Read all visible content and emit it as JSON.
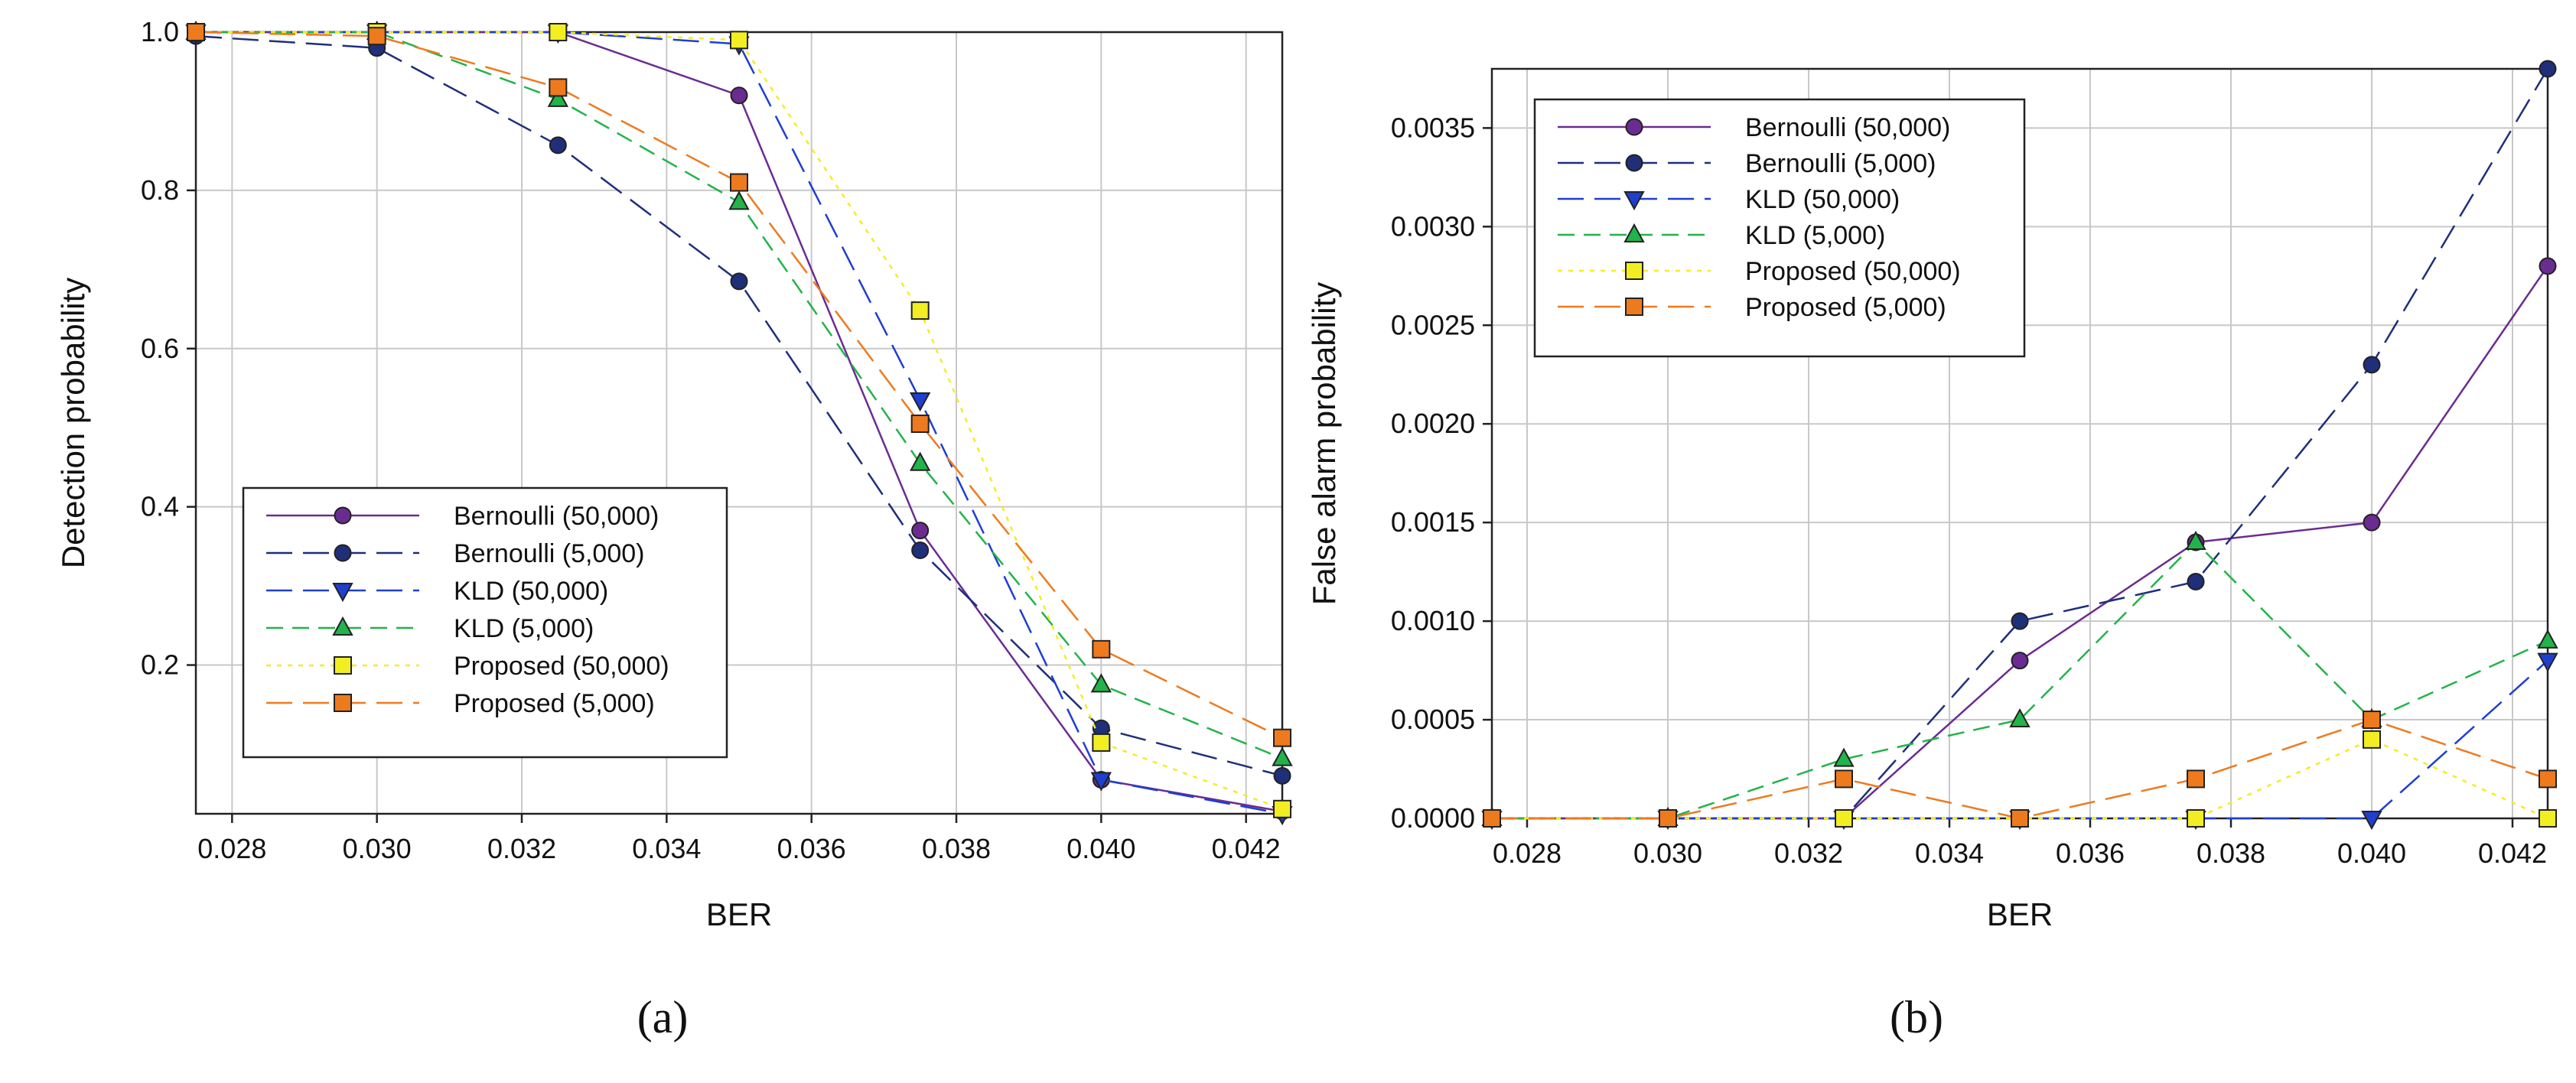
{
  "chart_data": [
    {
      "id": "a",
      "type": "line",
      "caption": "(a)",
      "xlabel": "BER",
      "ylabel": "Detection probability",
      "xlim": [
        0.0275,
        0.0425
      ],
      "ylim": [
        0.012,
        1.0
      ],
      "xticks": [
        0.028,
        0.03,
        0.032,
        0.034,
        0.036,
        0.038,
        0.04,
        0.042
      ],
      "xtick_labels": [
        "0.028",
        "0.030",
        "0.032",
        "0.034",
        "0.036",
        "0.038",
        "0.040",
        "0.042"
      ],
      "yticks": [
        0.2,
        0.4,
        0.6,
        0.8,
        1.0
      ],
      "ytick_labels": [
        "0.2",
        "0.4",
        "0.6",
        "0.8",
        "1.0"
      ],
      "grid": true,
      "legend_position": "lower-left",
      "x": [
        0.0275,
        0.03,
        0.0325,
        0.035,
        0.0375,
        0.04,
        0.0425
      ],
      "series": [
        {
          "name": "Bernoulli (50,000)",
          "color": "#6b2c91",
          "marker": "circle",
          "dash": "solid",
          "values": [
            1.0,
            1.0,
            1.0,
            0.92,
            0.37,
            0.055,
            0.015
          ]
        },
        {
          "name": "Bernoulli (5,000)",
          "color": "#1f2f7a",
          "marker": "circle",
          "dash": "long",
          "values": [
            0.995,
            0.98,
            0.857,
            0.685,
            0.345,
            0.12,
            0.06
          ]
        },
        {
          "name": "KLD (50,000)",
          "color": "#1f3fd0",
          "marker": "triangle-down",
          "dash": "long",
          "values": [
            1.0,
            1.0,
            1.0,
            0.985,
            0.535,
            0.055,
            0.012
          ]
        },
        {
          "name": "KLD (5,000)",
          "color": "#22b34a",
          "marker": "triangle-up",
          "dash": "medium",
          "values": [
            1.0,
            1.0,
            0.915,
            0.785,
            0.455,
            0.175,
            0.082
          ]
        },
        {
          "name": "Proposed (50,000)",
          "color": "#f2ee22",
          "marker": "square",
          "dash": "dotted",
          "values": [
            1.0,
            1.0,
            1.0,
            0.99,
            0.648,
            0.102,
            0.018
          ]
        },
        {
          "name": "Proposed (5,000)",
          "color": "#ee7a1e",
          "marker": "square",
          "dash": "long",
          "values": [
            1.0,
            0.995,
            0.93,
            0.81,
            0.505,
            0.22,
            0.108
          ]
        }
      ]
    },
    {
      "id": "b",
      "type": "line",
      "caption": "(b)",
      "xlabel": "BER",
      "ylabel": "False alarm probability",
      "xlim": [
        0.0275,
        0.0425
      ],
      "ylim": [
        0.0,
        0.0038
      ],
      "xticks": [
        0.028,
        0.03,
        0.032,
        0.034,
        0.036,
        0.038,
        0.04,
        0.042
      ],
      "xtick_labels": [
        "0.028",
        "0.030",
        "0.032",
        "0.034",
        "0.036",
        "0.038",
        "0.040",
        "0.042"
      ],
      "yticks": [
        0.0,
        0.0005,
        0.001,
        0.0015,
        0.002,
        0.0025,
        0.003,
        0.0035
      ],
      "ytick_labels": [
        "0.0000",
        "0.0005",
        "0.0010",
        "0.0015",
        "0.0020",
        "0.0025",
        "0.0030",
        "0.0035"
      ],
      "grid": true,
      "legend_position": "top-left",
      "x": [
        0.0275,
        0.03,
        0.0325,
        0.035,
        0.0375,
        0.04,
        0.0425
      ],
      "series": [
        {
          "name": "Bernoulli (50,000)",
          "color": "#6b2c91",
          "marker": "circle",
          "dash": "solid",
          "values": [
            0.0,
            0.0,
            0.0,
            0.0008,
            0.0014,
            0.0015,
            0.0028
          ]
        },
        {
          "name": "Bernoulli (5,000)",
          "color": "#1f2f7a",
          "marker": "circle",
          "dash": "long",
          "values": [
            0.0,
            0.0,
            0.0,
            0.001,
            0.0012,
            0.0023,
            0.0038
          ]
        },
        {
          "name": "KLD (50,000)",
          "color": "#1f3fd0",
          "marker": "triangle-down",
          "dash": "long",
          "values": [
            0.0,
            0.0,
            0.0,
            0.0,
            0.0,
            0.0,
            0.0008
          ]
        },
        {
          "name": "KLD (5,000)",
          "color": "#22b34a",
          "marker": "triangle-up",
          "dash": "medium",
          "values": [
            0.0,
            0.0,
            0.0003,
            0.0005,
            0.0014,
            0.0005,
            0.0009
          ]
        },
        {
          "name": "Proposed (50,000)",
          "color": "#f2ee22",
          "marker": "square",
          "dash": "dotted",
          "values": [
            0.0,
            0.0,
            0.0,
            0.0,
            0.0,
            0.0004,
            0.0
          ]
        },
        {
          "name": "Proposed (5,000)",
          "color": "#ee7a1e",
          "marker": "square",
          "dash": "long",
          "values": [
            0.0,
            0.0,
            0.0002,
            0.0,
            0.0002,
            0.0005,
            0.0002
          ]
        }
      ]
    }
  ]
}
